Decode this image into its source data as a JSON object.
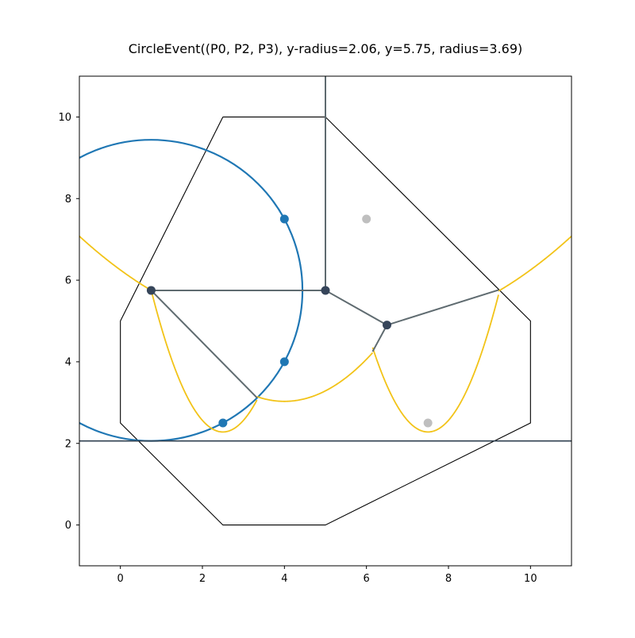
{
  "chart_data": {
    "type": "scatter",
    "title": "CircleEvent((P0, P2, P3), y-radius=2.06, y=5.75, radius=3.69)",
    "xlabel": "",
    "ylabel": "",
    "xlim": [
      -1,
      11
    ],
    "ylim": [
      -1,
      11
    ],
    "x_ticks": [
      0,
      2,
      4,
      6,
      8,
      10
    ],
    "y_ticks": [
      0,
      2,
      4,
      6,
      8,
      10
    ],
    "grid": false,
    "legend": "none",
    "colors": {
      "bounding_polygon": "#000000",
      "circle": "#1f77b4",
      "active_points": "#1f77b4",
      "inactive_points": "#bfbfbf",
      "beachline": "#f2c318",
      "sweep_line": "#2f4050",
      "edges": "#5f6b70",
      "vertices": "#36455a"
    },
    "bounding_polygon": [
      [
        2.5,
        10
      ],
      [
        5,
        10
      ],
      [
        10,
        5
      ],
      [
        10,
        2.5
      ],
      [
        5,
        0
      ],
      [
        2.5,
        0
      ],
      [
        0,
        2.5
      ],
      [
        0,
        5
      ],
      [
        2.5,
        10
      ]
    ],
    "sweep_line_y": 2.06,
    "circle": {
      "center": [
        0.75,
        5.75
      ],
      "radius": 3.69
    },
    "active_points": [
      [
        4,
        7.5
      ],
      [
        4,
        4
      ],
      [
        2.5,
        2.5
      ]
    ],
    "inactive_points": [
      [
        6,
        7.5
      ],
      [
        7.5,
        2.5
      ]
    ],
    "vertices": [
      [
        0.75,
        5.75
      ],
      [
        5,
        5.75
      ],
      [
        6.5,
        4.9
      ]
    ],
    "edges": [
      [
        [
          5,
          11
        ],
        [
          5,
          5.75
        ]
      ],
      [
        [
          0.75,
          5.75
        ],
        [
          5,
          5.75
        ]
      ],
      [
        [
          5,
          5.75
        ],
        [
          6.5,
          4.9
        ]
      ],
      [
        [
          6.5,
          4.9
        ],
        [
          9.22,
          5.76
        ]
      ],
      [
        [
          6.5,
          4.9
        ],
        [
          6.15,
          4.25
        ]
      ],
      [
        [
          0.75,
          5.75
        ],
        [
          3.33,
          3.12
        ]
      ]
    ],
    "beachline": {
      "directrix": 2.06,
      "arcs": [
        {
          "focus": [
            4,
            7.5
          ],
          "x_range": [
            -1,
            0.75
          ]
        },
        {
          "focus": [
            2.5,
            2.5
          ],
          "x_range": [
            0.75,
            3.33
          ]
        },
        {
          "focus": [
            4,
            4
          ],
          "x_range": [
            3.33,
            6.15
          ]
        },
        {
          "focus": [
            7.5,
            2.5
          ],
          "x_range": [
            6.15,
            9.22
          ]
        },
        {
          "focus": [
            6,
            7.5
          ],
          "x_range": [
            9.22,
            11
          ]
        }
      ]
    }
  }
}
